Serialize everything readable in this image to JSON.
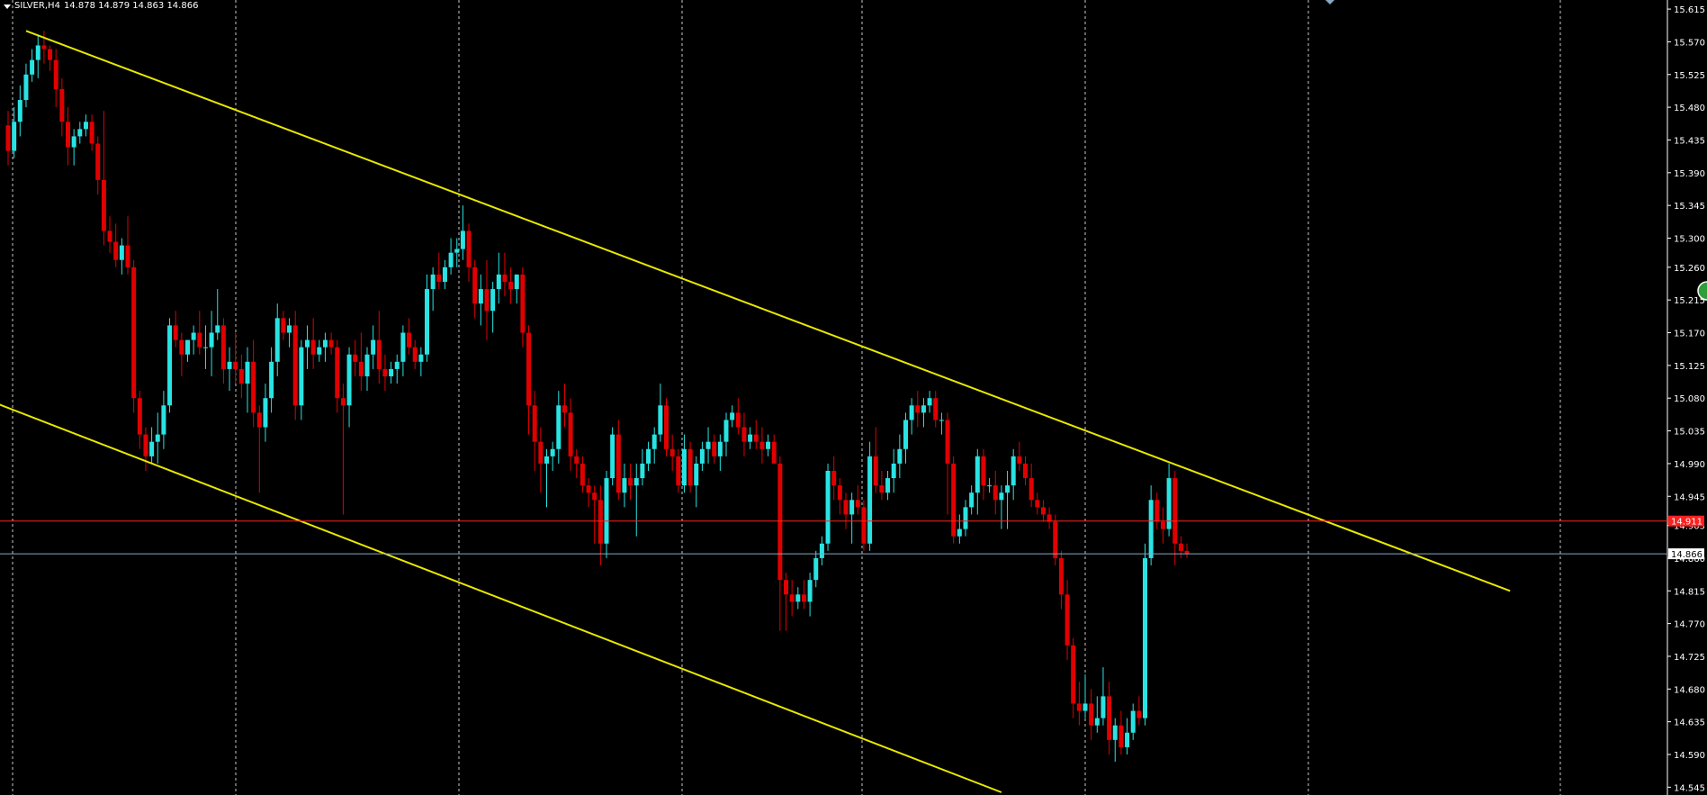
{
  "header": {
    "symbol": "SILVER,H4",
    "ohlc": "14.878 14.879 14.863 14.866"
  },
  "colors": {
    "background": "#000000",
    "grid": "#c8c8c8",
    "bull": "#29e3e3",
    "bear": "#e00000",
    "channel": "#e8e800",
    "price_line": "#ff2020",
    "bid_line": "#87a9c4",
    "axis_text": "#ffffff"
  },
  "icons": [
    "dropdown-arrow-icon",
    "scroll-marker-icon",
    "circle-button-icon"
  ],
  "chart_data": {
    "type": "candlestick",
    "symbol": "SILVER",
    "timeframe": "H4",
    "y_ticks": [
      "15.615",
      "15.570",
      "15.525",
      "15.480",
      "15.435",
      "15.390",
      "15.345",
      "15.300",
      "15.260",
      "15.215",
      "15.170",
      "15.125",
      "15.080",
      "15.035",
      "14.990",
      "14.945",
      "14.905",
      "14.860",
      "14.815",
      "14.770",
      "14.725",
      "14.680",
      "14.635",
      "14.590",
      "14.545"
    ],
    "ylim": [
      14.538,
      15.625
    ],
    "grid": "vertical-dashed",
    "horizontal_lines": [
      {
        "name": "alert-line",
        "price": 14.911,
        "label": "14.911",
        "color": "#ff2020"
      },
      {
        "name": "bid-line",
        "price": 14.866,
        "label": "14.866",
        "color": "#87a9c4"
      }
    ],
    "trendlines": [
      {
        "name": "channel-upper",
        "from": [
          3,
          15.585
        ],
        "to": [
          251,
          14.815
        ]
      },
      {
        "name": "channel-lower",
        "from": [
          -2,
          15.073
        ],
        "to": [
          166,
          14.538
        ]
      }
    ],
    "candles": [
      [
        15.455,
        15.475,
        15.4,
        15.42
      ],
      [
        15.42,
        15.48,
        15.41,
        15.46
      ],
      [
        15.46,
        15.51,
        15.44,
        15.49
      ],
      [
        15.49,
        15.54,
        15.48,
        15.525
      ],
      [
        15.525,
        15.56,
        15.515,
        15.545
      ],
      [
        15.545,
        15.58,
        15.52,
        15.565
      ],
      [
        15.565,
        15.585,
        15.54,
        15.56
      ],
      [
        15.56,
        15.565,
        15.53,
        15.545
      ],
      [
        15.545,
        15.56,
        15.48,
        15.505
      ],
      [
        15.505,
        15.52,
        15.44,
        15.46
      ],
      [
        15.46,
        15.48,
        15.4,
        15.425
      ],
      [
        15.425,
        15.45,
        15.4,
        15.44
      ],
      [
        15.44,
        15.46,
        15.43,
        15.45
      ],
      [
        15.45,
        15.47,
        15.44,
        15.46
      ],
      [
        15.46,
        15.47,
        15.42,
        15.43
      ],
      [
        15.43,
        15.44,
        15.36,
        15.38
      ],
      [
        15.38,
        15.475,
        15.29,
        15.31
      ],
      [
        15.31,
        15.33,
        15.28,
        15.295
      ],
      [
        15.295,
        15.32,
        15.26,
        15.27
      ],
      [
        15.27,
        15.3,
        15.25,
        15.29
      ],
      [
        15.29,
        15.33,
        15.25,
        15.26
      ],
      [
        15.26,
        15.27,
        15.06,
        15.08
      ],
      [
        15.08,
        15.09,
        15.01,
        15.03
      ],
      [
        15.03,
        15.04,
        14.98,
        15.0
      ],
      [
        15.0,
        15.04,
        14.99,
        15.02
      ],
      [
        15.02,
        15.06,
        14.99,
        15.03
      ],
      [
        15.03,
        15.09,
        15.01,
        15.07
      ],
      [
        15.07,
        15.19,
        15.06,
        15.18
      ],
      [
        15.18,
        15.2,
        15.15,
        15.16
      ],
      [
        15.16,
        15.17,
        15.11,
        15.14
      ],
      [
        15.14,
        15.15,
        15.13,
        15.16
      ],
      [
        15.16,
        15.18,
        15.14,
        15.17
      ],
      [
        15.17,
        15.2,
        15.14,
        15.15
      ],
      [
        15.15,
        15.18,
        15.12,
        15.15
      ],
      [
        15.15,
        15.2,
        15.11,
        15.17
      ],
      [
        15.17,
        15.23,
        15.16,
        15.18
      ],
      [
        15.18,
        15.19,
        15.1,
        15.12
      ],
      [
        15.12,
        15.15,
        15.09,
        15.13
      ],
      [
        15.13,
        15.17,
        15.1,
        15.12
      ],
      [
        15.12,
        15.14,
        15.08,
        15.1
      ],
      [
        15.1,
        15.15,
        15.06,
        15.13
      ],
      [
        15.13,
        15.16,
        15.04,
        15.06
      ],
      [
        15.06,
        15.07,
        14.95,
        15.04
      ],
      [
        15.04,
        15.1,
        15.02,
        15.08
      ],
      [
        15.08,
        15.15,
        15.06,
        15.13
      ],
      [
        15.13,
        15.21,
        15.11,
        15.19
      ],
      [
        15.19,
        15.2,
        15.16,
        15.17
      ],
      [
        15.17,
        15.19,
        15.15,
        15.18
      ],
      [
        15.18,
        15.2,
        15.05,
        15.07
      ],
      [
        15.07,
        15.16,
        15.05,
        15.15
      ],
      [
        15.15,
        15.18,
        15.12,
        15.16
      ],
      [
        15.16,
        15.19,
        15.12,
        15.14
      ],
      [
        15.14,
        15.16,
        15.13,
        15.15
      ],
      [
        15.15,
        15.17,
        15.13,
        15.16
      ],
      [
        15.16,
        15.17,
        15.14,
        15.15
      ],
      [
        15.15,
        15.16,
        15.06,
        15.08
      ],
      [
        15.08,
        15.1,
        14.92,
        15.07
      ],
      [
        15.07,
        15.15,
        15.04,
        15.14
      ],
      [
        15.14,
        15.16,
        15.11,
        15.13
      ],
      [
        15.13,
        15.17,
        15.09,
        15.11
      ],
      [
        15.11,
        15.15,
        15.09,
        15.14
      ],
      [
        15.14,
        15.18,
        15.12,
        15.16
      ],
      [
        15.16,
        15.2,
        15.1,
        15.12
      ],
      [
        15.12,
        15.14,
        15.09,
        15.11
      ],
      [
        15.11,
        15.13,
        15.1,
        15.12
      ],
      [
        15.12,
        15.14,
        15.1,
        15.13
      ],
      [
        15.13,
        15.18,
        15.11,
        15.17
      ],
      [
        15.17,
        15.19,
        15.14,
        15.15
      ],
      [
        15.15,
        15.16,
        15.12,
        15.13
      ],
      [
        15.13,
        15.15,
        15.11,
        15.14
      ],
      [
        15.14,
        15.25,
        15.13,
        15.23
      ],
      [
        15.23,
        15.26,
        15.2,
        15.25
      ],
      [
        15.25,
        15.28,
        15.23,
        15.24
      ],
      [
        15.24,
        15.27,
        15.23,
        15.26
      ],
      [
        15.26,
        15.3,
        15.25,
        15.28
      ],
      [
        15.28,
        15.3,
        15.26,
        15.285
      ],
      [
        15.285,
        15.345,
        15.27,
        15.31
      ],
      [
        15.31,
        15.32,
        15.24,
        15.26
      ],
      [
        15.26,
        15.27,
        15.19,
        15.21
      ],
      [
        15.21,
        15.25,
        15.18,
        15.23
      ],
      [
        15.23,
        15.27,
        15.16,
        15.2
      ],
      [
        15.2,
        15.24,
        15.17,
        15.23
      ],
      [
        15.23,
        15.28,
        15.21,
        15.25
      ],
      [
        15.25,
        15.28,
        15.22,
        15.24
      ],
      [
        15.24,
        15.26,
        15.21,
        15.23
      ],
      [
        15.23,
        15.25,
        15.21,
        15.25
      ],
      [
        15.25,
        15.26,
        15.15,
        15.17
      ],
      [
        15.17,
        15.18,
        15.03,
        15.07
      ],
      [
        15.07,
        15.09,
        14.98,
        15.02
      ],
      [
        15.02,
        15.04,
        14.95,
        14.99
      ],
      [
        14.99,
        15.01,
        14.93,
        15.0
      ],
      [
        15.0,
        15.02,
        14.98,
        15.01
      ],
      [
        15.01,
        15.09,
        14.99,
        15.07
      ],
      [
        15.07,
        15.1,
        15.04,
        15.06
      ],
      [
        15.06,
        15.08,
        14.98,
        15.0
      ],
      [
        15.0,
        15.01,
        14.97,
        14.99
      ],
      [
        14.99,
        15.0,
        14.95,
        14.96
      ],
      [
        14.96,
        14.97,
        14.93,
        14.95
      ],
      [
        14.95,
        14.96,
        14.88,
        14.94
      ],
      [
        14.94,
        14.96,
        14.85,
        14.88
      ],
      [
        14.88,
        14.98,
        14.86,
        14.97
      ],
      [
        14.97,
        15.04,
        14.96,
        15.03
      ],
      [
        15.03,
        15.05,
        14.94,
        14.95
      ],
      [
        14.95,
        14.99,
        14.93,
        14.97
      ],
      [
        14.97,
        14.99,
        14.94,
        14.96
      ],
      [
        14.96,
        14.99,
        14.89,
        14.97
      ],
      [
        14.97,
        15.01,
        14.96,
        14.99
      ],
      [
        14.99,
        15.02,
        14.98,
        15.01
      ],
      [
        15.01,
        15.04,
        14.99,
        15.03
      ],
      [
        15.03,
        15.1,
        15.02,
        15.07
      ],
      [
        15.07,
        15.08,
        15.0,
        15.01
      ],
      [
        15.01,
        15.03,
        14.98,
        15.0
      ],
      [
        15.0,
        15.01,
        14.95,
        14.96
      ],
      [
        14.96,
        15.03,
        14.95,
        15.01
      ],
      [
        15.01,
        15.02,
        14.95,
        14.96
      ],
      [
        14.96,
        15.0,
        14.93,
        14.99
      ],
      [
        14.99,
        15.02,
        14.98,
        15.01
      ],
      [
        15.01,
        15.04,
        14.99,
        15.02
      ],
      [
        15.02,
        15.03,
        14.99,
        15.0
      ],
      [
        15.0,
        15.03,
        14.98,
        15.02
      ],
      [
        15.02,
        15.06,
        15.0,
        15.05
      ],
      [
        15.05,
        15.07,
        15.04,
        15.06
      ],
      [
        15.06,
        15.08,
        15.03,
        15.04
      ],
      [
        15.04,
        15.06,
        15.0,
        15.02
      ],
      [
        15.02,
        15.04,
        15.01,
        15.03
      ],
      [
        15.03,
        15.05,
        15.01,
        15.02
      ],
      [
        15.02,
        15.04,
        14.99,
        15.01
      ],
      [
        15.01,
        15.03,
        15.0,
        15.02
      ],
      [
        15.02,
        15.03,
        14.99,
        14.99
      ],
      [
        14.99,
        15.0,
        14.76,
        14.83
      ],
      [
        14.83,
        14.84,
        14.76,
        14.81
      ],
      [
        14.81,
        14.83,
        14.78,
        14.8
      ],
      [
        14.8,
        14.82,
        14.79,
        14.81
      ],
      [
        14.81,
        14.83,
        14.79,
        14.8
      ],
      [
        14.8,
        14.84,
        14.78,
        14.83
      ],
      [
        14.83,
        14.87,
        14.82,
        14.86
      ],
      [
        14.86,
        14.89,
        14.85,
        14.88
      ],
      [
        14.88,
        14.99,
        14.87,
        14.98
      ],
      [
        14.98,
        15.0,
        14.94,
        14.96
      ],
      [
        14.96,
        14.97,
        14.92,
        14.94
      ],
      [
        14.94,
        14.95,
        14.9,
        14.92
      ],
      [
        14.92,
        14.95,
        14.88,
        14.94
      ],
      [
        14.94,
        14.96,
        14.92,
        14.93
      ],
      [
        14.93,
        14.94,
        14.87,
        14.88
      ],
      [
        14.88,
        15.02,
        14.87,
        15.0
      ],
      [
        15.0,
        15.04,
        14.95,
        14.96
      ],
      [
        14.96,
        14.98,
        14.94,
        14.95
      ],
      [
        14.95,
        14.98,
        14.94,
        14.97
      ],
      [
        14.97,
        15.01,
        14.95,
        14.99
      ],
      [
        14.99,
        15.03,
        14.97,
        15.01
      ],
      [
        15.01,
        15.06,
        14.99,
        15.05
      ],
      [
        15.05,
        15.08,
        15.03,
        15.07
      ],
      [
        15.07,
        15.09,
        15.04,
        15.06
      ],
      [
        15.06,
        15.08,
        15.04,
        15.07
      ],
      [
        15.07,
        15.09,
        15.06,
        15.08
      ],
      [
        15.08,
        15.09,
        15.04,
        15.05
      ],
      [
        15.05,
        15.06,
        15.03,
        15.05
      ],
      [
        15.05,
        15.06,
        14.92,
        14.99
      ],
      [
        14.99,
        15.0,
        14.88,
        14.89
      ],
      [
        14.89,
        14.92,
        14.88,
        14.9
      ],
      [
        14.9,
        14.94,
        14.89,
        14.93
      ],
      [
        14.93,
        14.96,
        14.92,
        14.95
      ],
      [
        14.95,
        15.01,
        14.92,
        15.0
      ],
      [
        15.0,
        15.01,
        14.94,
        14.96
      ],
      [
        14.96,
        14.97,
        14.95,
        14.96
      ],
      [
        14.96,
        14.98,
        14.92,
        14.94
      ],
      [
        14.94,
        14.96,
        14.9,
        14.95
      ],
      [
        14.95,
        14.98,
        14.9,
        14.96
      ],
      [
        14.96,
        15.01,
        14.94,
        15.0
      ],
      [
        15.0,
        15.02,
        14.98,
        14.99
      ],
      [
        14.99,
        15.0,
        14.96,
        14.97
      ],
      [
        14.97,
        14.99,
        14.93,
        14.94
      ],
      [
        14.94,
        14.95,
        14.92,
        14.93
      ],
      [
        14.93,
        14.94,
        14.91,
        14.92
      ],
      [
        14.92,
        14.93,
        14.9,
        14.91
      ],
      [
        14.91,
        14.92,
        14.85,
        14.86
      ],
      [
        14.86,
        14.87,
        14.79,
        14.81
      ],
      [
        14.81,
        14.83,
        14.72,
        14.74
      ],
      [
        14.74,
        14.75,
        14.64,
        14.66
      ],
      [
        14.66,
        14.69,
        14.63,
        14.65
      ],
      [
        14.65,
        14.7,
        14.64,
        14.66
      ],
      [
        14.66,
        14.68,
        14.61,
        14.63
      ],
      [
        14.63,
        14.67,
        14.62,
        14.64
      ],
      [
        14.64,
        14.71,
        14.63,
        14.67
      ],
      [
        14.67,
        14.69,
        14.59,
        14.61
      ],
      [
        14.61,
        14.64,
        14.58,
        14.63
      ],
      [
        14.63,
        14.65,
        14.59,
        14.6
      ],
      [
        14.6,
        14.64,
        14.59,
        14.62
      ],
      [
        14.62,
        14.66,
        14.61,
        14.65
      ],
      [
        14.65,
        14.67,
        14.63,
        14.64
      ],
      [
        14.64,
        14.88,
        14.63,
        14.86
      ],
      [
        14.86,
        14.96,
        14.85,
        14.94
      ],
      [
        14.94,
        14.95,
        14.9,
        14.91
      ],
      [
        14.91,
        14.93,
        14.88,
        14.9
      ],
      [
        14.9,
        14.99,
        14.89,
        14.97
      ],
      [
        14.97,
        14.98,
        14.85,
        14.88
      ],
      [
        14.88,
        14.89,
        14.86,
        14.87
      ],
      [
        14.87,
        14.88,
        14.86,
        14.866
      ]
    ]
  }
}
